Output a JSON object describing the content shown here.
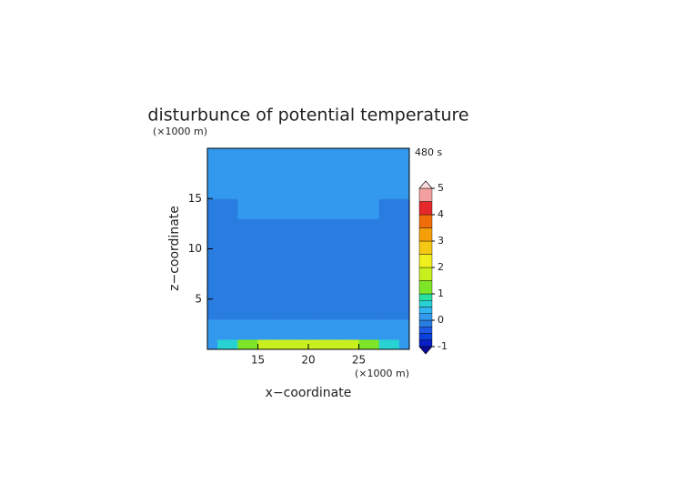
{
  "chart_data": {
    "type": "contour",
    "title": "disturbunce of potential temperature",
    "x_label": "x−coordinate",
    "y_label": "z−coordinate",
    "x_unit_label": "(×1000 m)",
    "y_unit_label": "(×1000 m)",
    "time_label": "480 s",
    "x": [
      10,
      12,
      14,
      16,
      18,
      20,
      22,
      24,
      26,
      28,
      30
    ],
    "y": [
      0,
      2,
      4,
      6,
      8,
      10,
      12,
      14,
      16,
      18,
      20
    ],
    "z": [
      [
        0.1,
        0.6,
        1.2,
        1.6,
        1.8,
        1.8,
        1.8,
        1.6,
        1.2,
        0.6,
        0.1
      ],
      [
        0.1,
        0.1,
        0.1,
        0.1,
        0.1,
        0.1,
        0.1,
        0.1,
        0.1,
        0.1,
        0.1
      ],
      [
        -0.1,
        -0.1,
        -0.1,
        -0.1,
        -0.1,
        -0.1,
        -0.1,
        -0.1,
        -0.1,
        -0.1,
        -0.1
      ],
      [
        -0.1,
        -0.1,
        -0.1,
        -0.1,
        -0.1,
        -0.1,
        -0.1,
        -0.1,
        -0.1,
        -0.1,
        -0.1
      ],
      [
        -0.1,
        -0.1,
        -0.1,
        -0.1,
        -0.1,
        -0.1,
        -0.1,
        -0.1,
        -0.1,
        -0.1,
        -0.1
      ],
      [
        -0.1,
        -0.1,
        -0.1,
        -0.1,
        -0.1,
        -0.1,
        -0.1,
        -0.1,
        -0.1,
        -0.1,
        -0.1
      ],
      [
        -0.1,
        -0.1,
        -0.1,
        -0.1,
        -0.1,
        -0.1,
        -0.1,
        -0.1,
        -0.1,
        -0.1,
        -0.1
      ],
      [
        -0.1,
        -0.1,
        0.1,
        0.1,
        0.1,
        0.1,
        0.1,
        0.1,
        0.1,
        -0.1,
        -0.1
      ],
      [
        0.1,
        0.1,
        0.1,
        0.1,
        0.1,
        0.1,
        0.1,
        0.1,
        0.1,
        0.1,
        0.1
      ],
      [
        0.1,
        0.1,
        0.1,
        0.1,
        0.1,
        0.1,
        0.1,
        0.1,
        0.1,
        0.1,
        0.1
      ],
      [
        0.1,
        0.1,
        0.1,
        0.1,
        0.1,
        0.1,
        0.1,
        0.1,
        0.1,
        0.1,
        0.1
      ]
    ],
    "xlim": [
      10,
      30
    ],
    "ylim": [
      0,
      20
    ],
    "xticks": [
      15,
      20,
      25
    ],
    "yticks": [
      5,
      10,
      15
    ],
    "levels": [
      -1,
      -0.75,
      -0.5,
      -0.25,
      0,
      0.25,
      0.5,
      0.75,
      1,
      1.5,
      2,
      2.5,
      3,
      3.5,
      4,
      4.5,
      5
    ],
    "colors": [
      "#0a1ec8",
      "#0a40dc",
      "#1e5ae6",
      "#2a7de0",
      "#3399ee",
      "#32b4f0",
      "#28d2d2",
      "#28e0a0",
      "#7de628",
      "#c8f01e",
      "#f0f01e",
      "#f5c814",
      "#f5a00a",
      "#f06e0a",
      "#e6282d",
      "#f5a0a0"
    ],
    "under_color": "#0a0a96",
    "over_color": "#fadcdc",
    "colorbar_ticks": [
      -1,
      0,
      1,
      2,
      3,
      4,
      5
    ]
  }
}
